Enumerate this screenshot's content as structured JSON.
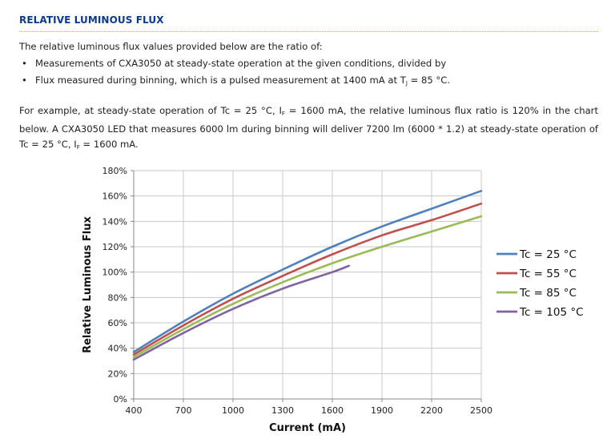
{
  "section": {
    "title": "RELATIVE LUMINOUS FLUX",
    "intro": "The relative luminous flux values provided below are the ratio of:",
    "bullets": [
      "Measurements of CXA3050 at steady-state operation at the given conditions, divided by",
      "Flux measured during binning, which is a pulsed measurement at 1400 mA at T<sub>J</sub> = 85 °C."
    ],
    "example": "For example, at steady-state operation of Tc = 25 °C, I<sub>F</sub> = 1600 mA, the relative luminous flux ratio is 120% in the chart below. A CXA3050 LED that measures 6000 lm during binning will deliver 7200 lm (6000 * 1.2) at steady-state operation of Tc = 25 °C, I<sub>F</sub> = 1600 mA."
  },
  "chart_data": {
    "type": "line",
    "title": "",
    "xlabel": "Current (mA)",
    "ylabel": "Relative Luminous Flux",
    "xlim": [
      400,
      2500
    ],
    "ylim": [
      0,
      180
    ],
    "x_ticks": [
      400,
      700,
      1000,
      1300,
      1600,
      1900,
      2200,
      2500
    ],
    "y_ticks": [
      0,
      20,
      40,
      60,
      80,
      100,
      120,
      140,
      160,
      180
    ],
    "y_tick_labels": [
      "0%",
      "20%",
      "40%",
      "60%",
      "80%",
      "100%",
      "120%",
      "140%",
      "160%",
      "180%"
    ],
    "grid": true,
    "legend_position": "right",
    "series": [
      {
        "name": "Tc = 25 °C",
        "color": "#4f81bd",
        "x": [
          400,
          700,
          1000,
          1300,
          1600,
          1900,
          2200,
          2500
        ],
        "values": [
          37,
          61,
          83,
          102,
          120,
          136,
          150,
          164
        ]
      },
      {
        "name": "Tc = 55 °C",
        "color": "#c0504d",
        "x": [
          400,
          700,
          1000,
          1300,
          1600,
          1900,
          2200,
          2500
        ],
        "values": [
          35,
          58,
          79,
          97,
          114,
          129,
          141,
          154
        ]
      },
      {
        "name": "Tc = 85 °C",
        "color": "#9bbb59",
        "x": [
          400,
          700,
          1000,
          1300,
          1600,
          1900,
          2200,
          2500
        ],
        "values": [
          33,
          55,
          75,
          92,
          107,
          120,
          132,
          144
        ]
      },
      {
        "name": "Tc = 105 °C",
        "color": "#8064a2",
        "x": [
          400,
          700,
          1000,
          1300,
          1600,
          1700
        ],
        "values": [
          31,
          52,
          71,
          87,
          100,
          105
        ]
      }
    ]
  }
}
